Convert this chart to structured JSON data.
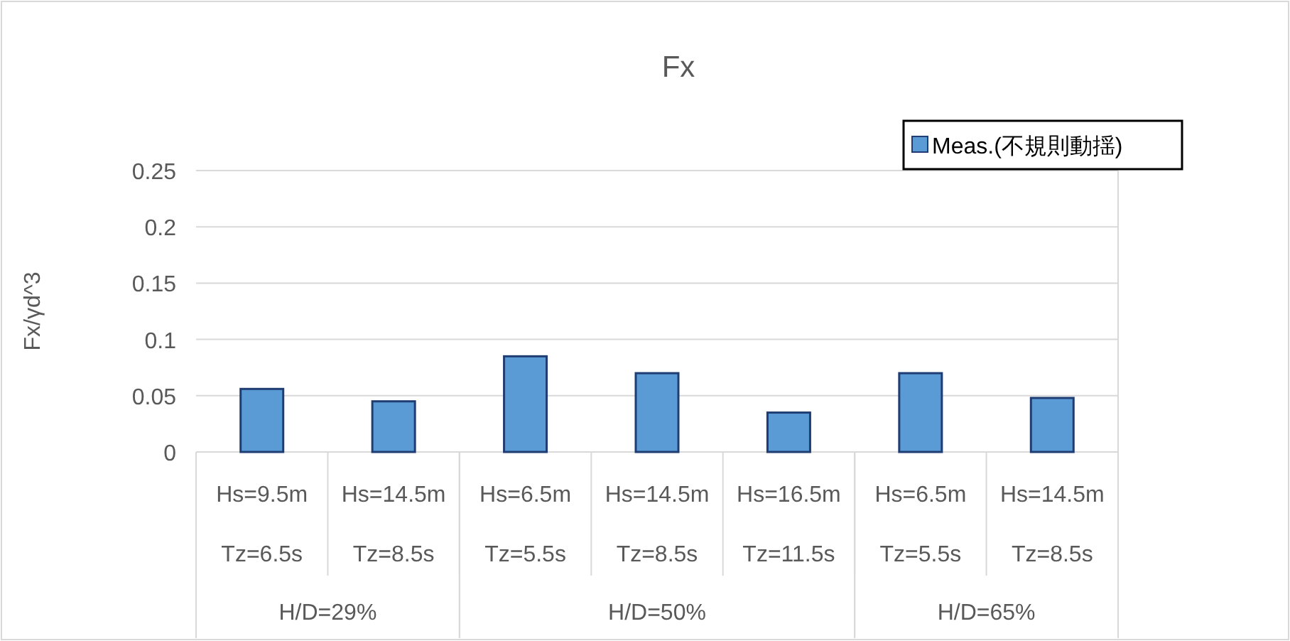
{
  "chart_data": {
    "type": "bar",
    "title": "Fx",
    "ylabel": "Fx/γd^3",
    "categories": [
      "Hs=9.5m\nTz=6.5s",
      "Hs=14.5m\nTz=8.5s",
      "Hs=6.5m\nTz=5.5s",
      "Hs=14.5m\nTz=8.5s",
      "Hs=16.5m\nTz=11.5s",
      "Hs=6.5m\nTz=5.5s",
      "Hs=14.5m\nTz=8.5s"
    ],
    "series": [
      {
        "name": "Meas.(不規則動揺)",
        "color": "#5b9bd5",
        "values": [
          0.056,
          0.045,
          0.085,
          0.07,
          0.035,
          0.07,
          0.048
        ]
      }
    ],
    "annotations": [
      "H/D=29%",
      "H/D=50%",
      "H/D=65%"
    ],
    "ylim": [
      0,
      0.25
    ],
    "yticks": [
      0,
      0.05,
      0.1,
      0.15,
      0.2,
      0.25
    ],
    "grid": "y",
    "legend": "top right"
  }
}
